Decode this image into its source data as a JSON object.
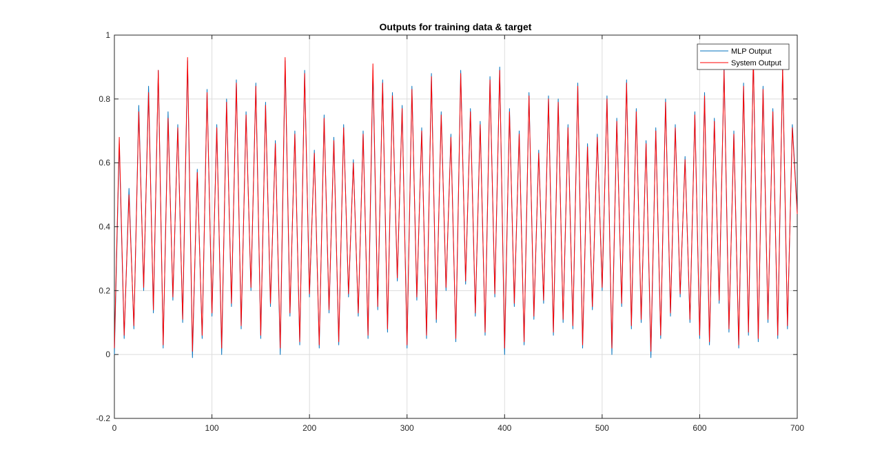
{
  "chart_data": {
    "type": "line",
    "title": "Outputs for training data & target",
    "xlabel": "",
    "ylabel": "",
    "xlim": [
      0,
      700
    ],
    "ylim": [
      -0.2,
      1
    ],
    "xticks": [
      0,
      100,
      200,
      300,
      400,
      500,
      600,
      700
    ],
    "yticks": [
      -0.2,
      0,
      0.2,
      0.4,
      0.6,
      0.8,
      1
    ],
    "xtick_labels": [
      "0",
      "100",
      "200",
      "300",
      "400",
      "500",
      "600",
      "700"
    ],
    "ytick_labels": [
      "-0.2",
      "0",
      "0.2",
      "0.4",
      "0.6",
      "0.8",
      "1"
    ],
    "grid": true,
    "legend_position": "top-right",
    "approximate": true,
    "series": [
      {
        "name": "MLP Output",
        "color": "#0072bd",
        "x": [
          0,
          5,
          10,
          15,
          20,
          25,
          30,
          35,
          40,
          45,
          50,
          55,
          60,
          65,
          70,
          75,
          80,
          85,
          90,
          95,
          100,
          105,
          110,
          115,
          120,
          125,
          130,
          135,
          140,
          145,
          150,
          155,
          160,
          165,
          170,
          175,
          180,
          185,
          190,
          195,
          200,
          205,
          210,
          215,
          220,
          225,
          230,
          235,
          240,
          245,
          250,
          255,
          260,
          265,
          270,
          275,
          280,
          285,
          290,
          295,
          300,
          305,
          310,
          315,
          320,
          325,
          330,
          335,
          340,
          345,
          350,
          355,
          360,
          365,
          370,
          375,
          380,
          385,
          390,
          395,
          400,
          405,
          410,
          415,
          420,
          425,
          430,
          435,
          440,
          445,
          450,
          455,
          460,
          465,
          470,
          475,
          480,
          485,
          490,
          495,
          500,
          505,
          510,
          515,
          520,
          525,
          530,
          535,
          540,
          545,
          550,
          555,
          560,
          565,
          570,
          575,
          580,
          585,
          590,
          595,
          600,
          605,
          610,
          615,
          620,
          625,
          630,
          635,
          640,
          645,
          650,
          655,
          660,
          665,
          670,
          675,
          680,
          685,
          690,
          695,
          700
        ],
        "y": [
          0.0,
          0.66,
          0.05,
          0.52,
          0.08,
          0.78,
          0.2,
          0.84,
          0.13,
          0.89,
          0.02,
          0.76,
          0.17,
          0.72,
          0.1,
          0.92,
          -0.01,
          0.58,
          0.05,
          0.83,
          0.12,
          0.72,
          0.0,
          0.8,
          0.15,
          0.86,
          0.08,
          0.76,
          0.2,
          0.85,
          0.05,
          0.79,
          0.15,
          0.67,
          0.0,
          0.92,
          0.12,
          0.7,
          0.03,
          0.89,
          0.18,
          0.64,
          0.02,
          0.75,
          0.13,
          0.68,
          0.03,
          0.72,
          0.18,
          0.61,
          0.12,
          0.7,
          0.05,
          0.89,
          0.14,
          0.86,
          0.07,
          0.82,
          0.23,
          0.78,
          0.02,
          0.84,
          0.17,
          0.71,
          0.05,
          0.88,
          0.1,
          0.76,
          0.2,
          0.69,
          0.04,
          0.89,
          0.22,
          0.77,
          0.12,
          0.73,
          0.06,
          0.87,
          0.18,
          0.9,
          0.0,
          0.77,
          0.15,
          0.7,
          0.03,
          0.82,
          0.11,
          0.64,
          0.16,
          0.81,
          0.06,
          0.8,
          0.1,
          0.72,
          0.08,
          0.85,
          0.02,
          0.66,
          0.14,
          0.69,
          0.2,
          0.81,
          0.0,
          0.74,
          0.15,
          0.86,
          0.08,
          0.77,
          0.1,
          0.67,
          -0.01,
          0.71,
          0.05,
          0.8,
          0.12,
          0.72,
          0.18,
          0.62,
          0.1,
          0.76,
          0.05,
          0.82,
          0.03,
          0.74,
          0.16,
          0.9,
          0.07,
          0.7,
          0.02,
          0.85,
          0.06,
          0.93,
          0.04,
          0.84,
          0.1,
          0.77,
          0.05,
          0.9,
          0.08,
          0.72,
          0.45
        ]
      },
      {
        "name": "System Output",
        "color": "#ff0000",
        "x": [
          0,
          5,
          10,
          15,
          20,
          25,
          30,
          35,
          40,
          45,
          50,
          55,
          60,
          65,
          70,
          75,
          80,
          85,
          90,
          95,
          100,
          105,
          110,
          115,
          120,
          125,
          130,
          135,
          140,
          145,
          150,
          155,
          160,
          165,
          170,
          175,
          180,
          185,
          190,
          195,
          200,
          205,
          210,
          215,
          220,
          225,
          230,
          235,
          240,
          245,
          250,
          255,
          260,
          265,
          270,
          275,
          280,
          285,
          290,
          295,
          300,
          305,
          310,
          315,
          320,
          325,
          330,
          335,
          340,
          345,
          350,
          355,
          360,
          365,
          370,
          375,
          380,
          385,
          390,
          395,
          400,
          405,
          410,
          415,
          420,
          425,
          430,
          435,
          440,
          445,
          450,
          455,
          460,
          465,
          470,
          475,
          480,
          485,
          490,
          495,
          500,
          505,
          510,
          515,
          520,
          525,
          530,
          535,
          540,
          545,
          550,
          555,
          560,
          565,
          570,
          575,
          580,
          585,
          590,
          595,
          600,
          605,
          610,
          615,
          620,
          625,
          630,
          635,
          640,
          645,
          650,
          655,
          660,
          665,
          670,
          675,
          680,
          685,
          690,
          695,
          700
        ],
        "y": [
          0.02,
          0.68,
          0.06,
          0.5,
          0.09,
          0.76,
          0.21,
          0.82,
          0.14,
          0.89,
          0.03,
          0.74,
          0.18,
          0.71,
          0.11,
          0.93,
          0.01,
          0.57,
          0.06,
          0.82,
          0.13,
          0.71,
          0.02,
          0.79,
          0.16,
          0.85,
          0.09,
          0.75,
          0.21,
          0.84,
          0.06,
          0.78,
          0.16,
          0.66,
          0.02,
          0.93,
          0.13,
          0.69,
          0.04,
          0.88,
          0.19,
          0.63,
          0.03,
          0.74,
          0.14,
          0.67,
          0.04,
          0.71,
          0.19,
          0.6,
          0.13,
          0.69,
          0.06,
          0.91,
          0.15,
          0.85,
          0.08,
          0.81,
          0.24,
          0.77,
          0.03,
          0.83,
          0.18,
          0.7,
          0.06,
          0.87,
          0.11,
          0.75,
          0.21,
          0.68,
          0.05,
          0.88,
          0.23,
          0.76,
          0.13,
          0.72,
          0.07,
          0.86,
          0.19,
          0.89,
          0.02,
          0.76,
          0.16,
          0.69,
          0.04,
          0.81,
          0.12,
          0.63,
          0.17,
          0.8,
          0.07,
          0.79,
          0.11,
          0.71,
          0.09,
          0.84,
          0.03,
          0.65,
          0.15,
          0.68,
          0.21,
          0.8,
          0.02,
          0.73,
          0.16,
          0.85,
          0.09,
          0.76,
          0.11,
          0.66,
          0.01,
          0.7,
          0.06,
          0.79,
          0.13,
          0.71,
          0.19,
          0.61,
          0.11,
          0.75,
          0.06,
          0.81,
          0.04,
          0.73,
          0.17,
          0.89,
          0.08,
          0.69,
          0.03,
          0.84,
          0.07,
          0.93,
          0.05,
          0.83,
          0.11,
          0.76,
          0.06,
          0.9,
          0.09,
          0.71,
          0.44
        ]
      }
    ]
  }
}
